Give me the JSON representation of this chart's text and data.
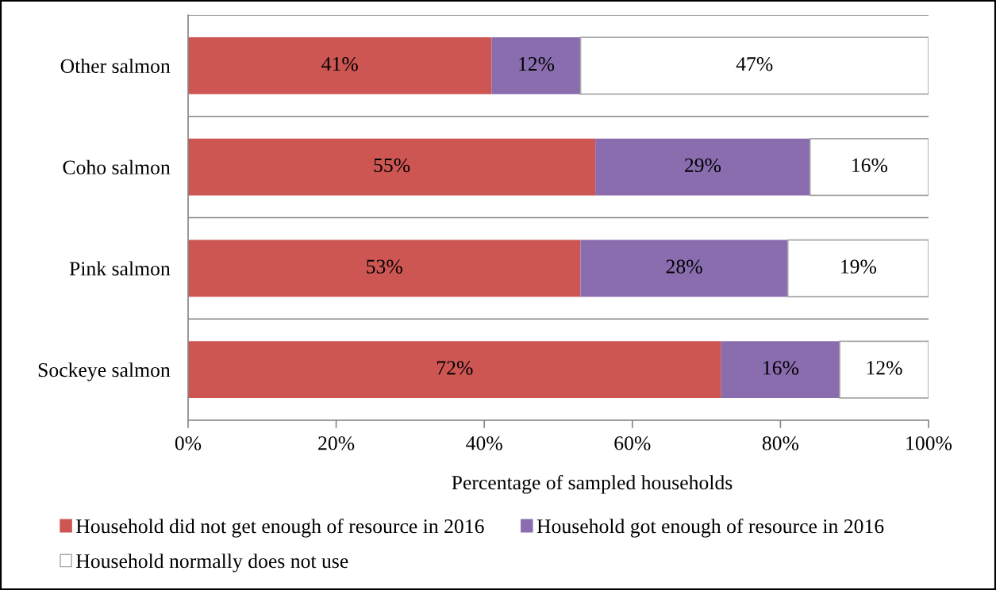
{
  "chart_data": {
    "type": "bar",
    "orientation": "horizontal",
    "stacked": true,
    "xlabel": "Percentage of sampled households",
    "categories": [
      "Other salmon",
      "Coho salmon",
      "Pink salmon",
      "Sockeye salmon"
    ],
    "series": [
      {
        "name": "Household did not get enough of resource in 2016",
        "color": "#cd5653",
        "values": [
          41,
          55,
          53,
          72
        ],
        "value_labels": [
          "41%",
          "55%",
          "53%",
          "72%"
        ]
      },
      {
        "name": "Household got enough of resource in 2016",
        "color": "#8a6daf",
        "values": [
          12,
          29,
          28,
          16
        ],
        "value_labels": [
          "12%",
          "29%",
          "28%",
          "16%"
        ]
      },
      {
        "name": "Household normally does not use",
        "color": "#ffffff",
        "values": [
          47,
          16,
          19,
          12
        ],
        "value_labels": [
          "47%",
          "16%",
          "19%",
          "12%"
        ]
      }
    ],
    "xlim": [
      0,
      100
    ],
    "xticks": [
      {
        "value": 0,
        "label": "0%"
      },
      {
        "value": 20,
        "label": "20%"
      },
      {
        "value": 40,
        "label": "40%"
      },
      {
        "value": 60,
        "label": "60%"
      },
      {
        "value": 80,
        "label": "80%"
      },
      {
        "value": 100,
        "label": "100%"
      }
    ],
    "grid": "y",
    "legend": "bottom"
  }
}
